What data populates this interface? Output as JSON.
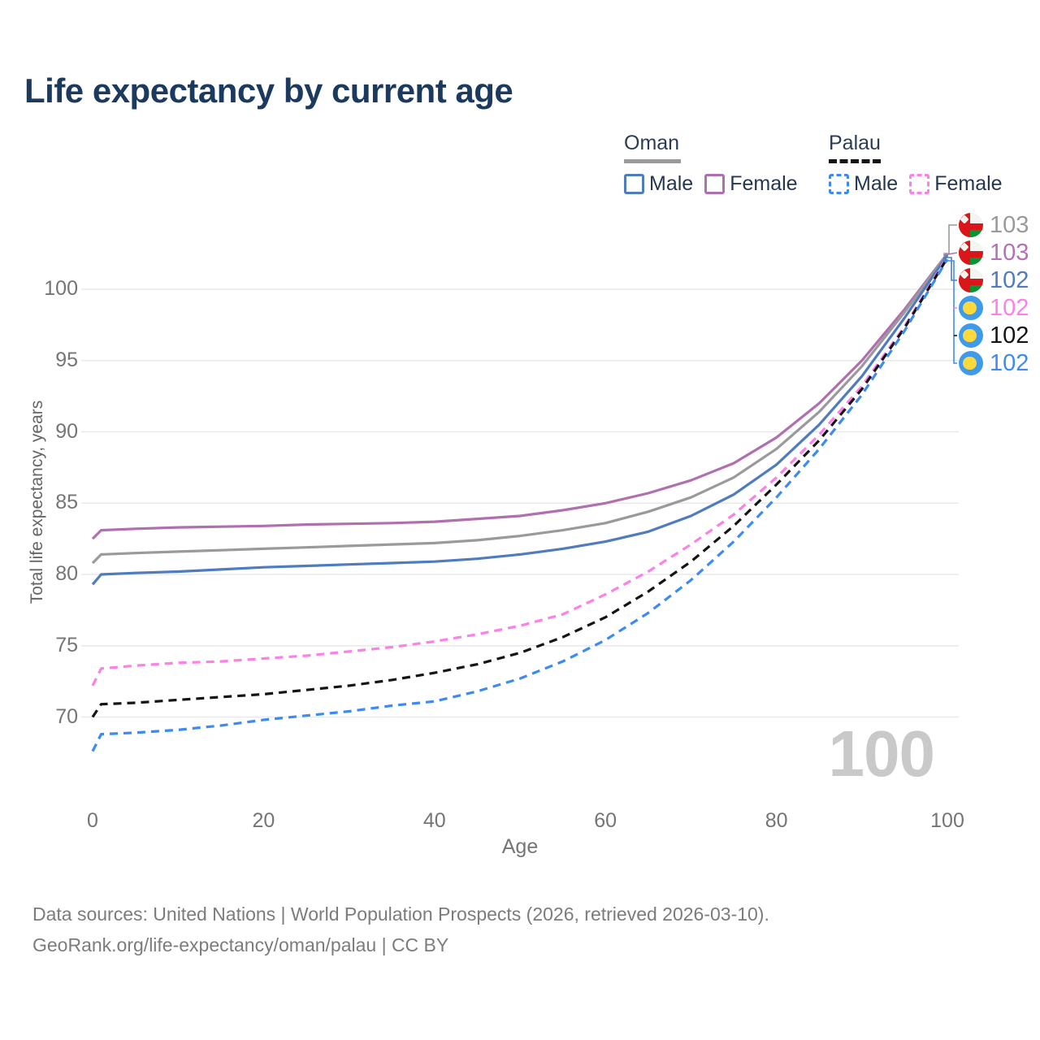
{
  "title": "Life expectancy by current age",
  "legend": {
    "groups": [
      {
        "country": "Oman",
        "line_style": "solid",
        "line_color": "#9a9a9a",
        "items": [
          {
            "label": "Male",
            "color": "#4f7bbf",
            "dashed": false
          },
          {
            "label": "Female",
            "color": "#b06fae",
            "dashed": false
          }
        ]
      },
      {
        "country": "Palau",
        "line_style": "dashed",
        "line_color": "#141414",
        "items": [
          {
            "label": "Male",
            "color": "#3d8bf2",
            "dashed": true
          },
          {
            "label": "Female",
            "color": "#fd80e6",
            "dashed": true
          }
        ]
      }
    ]
  },
  "chart_data": {
    "type": "line",
    "title": "Life expectancy by current age",
    "xlabel": "Age",
    "ylabel": "Total life expectancy, years",
    "x_ticks": [
      0,
      20,
      40,
      60,
      80,
      100
    ],
    "y_ticks": [
      70,
      75,
      80,
      85,
      90,
      95,
      100
    ],
    "xlim": [
      0,
      100
    ],
    "ylim": [
      66.5,
      103.5
    ],
    "grid": "horizontal",
    "legend_position": "top-right",
    "x": [
      0,
      1,
      5,
      10,
      15,
      20,
      25,
      30,
      35,
      40,
      45,
      50,
      55,
      60,
      65,
      70,
      75,
      80,
      85,
      90,
      95,
      100
    ],
    "series": [
      {
        "name": "Oman Female",
        "country": "Oman",
        "sex": "Female",
        "color": "#b06fae",
        "dashed": false,
        "end_value_label": "103",
        "values": [
          82.5,
          83.1,
          83.2,
          83.3,
          83.35,
          83.4,
          83.5,
          83.55,
          83.6,
          83.7,
          83.9,
          84.1,
          84.5,
          85.0,
          85.7,
          86.6,
          87.8,
          89.6,
          92.0,
          95.0,
          98.6,
          102.5
        ]
      },
      {
        "name": "Oman Both sexes",
        "country": "Oman",
        "sex": "Both",
        "color": "#9a9a9a",
        "dashed": false,
        "end_value_label": "103",
        "values": [
          80.8,
          81.4,
          81.5,
          81.6,
          81.7,
          81.8,
          81.9,
          82.0,
          82.1,
          82.2,
          82.4,
          82.7,
          83.1,
          83.6,
          84.4,
          85.4,
          86.8,
          88.8,
          91.4,
          94.6,
          98.4,
          102.5
        ]
      },
      {
        "name": "Oman Male",
        "country": "Oman",
        "sex": "Male",
        "color": "#4f7bbf",
        "dashed": false,
        "end_value_label": "102",
        "values": [
          79.3,
          80.0,
          80.1,
          80.2,
          80.35,
          80.5,
          80.6,
          80.7,
          80.8,
          80.9,
          81.1,
          81.4,
          81.8,
          82.3,
          83.0,
          84.1,
          85.6,
          87.7,
          90.5,
          93.9,
          98.0,
          102.4
        ]
      },
      {
        "name": "Palau Female",
        "country": "Palau",
        "sex": "Female",
        "color": "#fd80e6",
        "dashed": true,
        "end_value_label": "102",
        "values": [
          72.2,
          73.4,
          73.6,
          73.8,
          73.9,
          74.1,
          74.3,
          74.6,
          74.9,
          75.3,
          75.8,
          76.4,
          77.2,
          78.6,
          80.2,
          82.1,
          84.2,
          86.8,
          89.8,
          93.2,
          97.4,
          102.3
        ]
      },
      {
        "name": "Palau Both sexes",
        "country": "Palau",
        "sex": "Both",
        "color": "#141414",
        "dashed": true,
        "end_value_label": "102",
        "values": [
          70.0,
          70.9,
          71.0,
          71.2,
          71.4,
          71.6,
          71.9,
          72.2,
          72.6,
          73.1,
          73.7,
          74.5,
          75.6,
          77.0,
          78.8,
          80.9,
          83.4,
          86.3,
          89.4,
          93.0,
          97.3,
          102.2
        ]
      },
      {
        "name": "Palau Male",
        "country": "Palau",
        "sex": "Male",
        "color": "#3d8bf2",
        "dashed": true,
        "end_value_label": "102",
        "values": [
          67.6,
          68.8,
          68.9,
          69.1,
          69.4,
          69.8,
          70.1,
          70.4,
          70.8,
          71.1,
          71.8,
          72.7,
          73.9,
          75.4,
          77.3,
          79.6,
          82.3,
          85.4,
          88.8,
          92.6,
          97.1,
          102.1
        ]
      }
    ]
  },
  "end_labels": [
    {
      "flag": "oman",
      "value": "103",
      "color": "#9a9a9a"
    },
    {
      "flag": "oman",
      "value": "103",
      "color": "#b472b4"
    },
    {
      "flag": "oman",
      "value": "102",
      "color": "#4f7bbf"
    },
    {
      "flag": "palau",
      "value": "102",
      "color": "#fd80e6"
    },
    {
      "flag": "palau",
      "value": "102",
      "color": "#141414"
    },
    {
      "flag": "palau",
      "value": "102",
      "color": "#3d8bf2"
    }
  ],
  "watermark": "100",
  "footer": {
    "line1": "Data sources: United Nations | World Population Prospects (2026, retrieved 2026-03-10).",
    "line2": "GeoRank.org/life-expectancy/oman/palau | CC BY"
  }
}
